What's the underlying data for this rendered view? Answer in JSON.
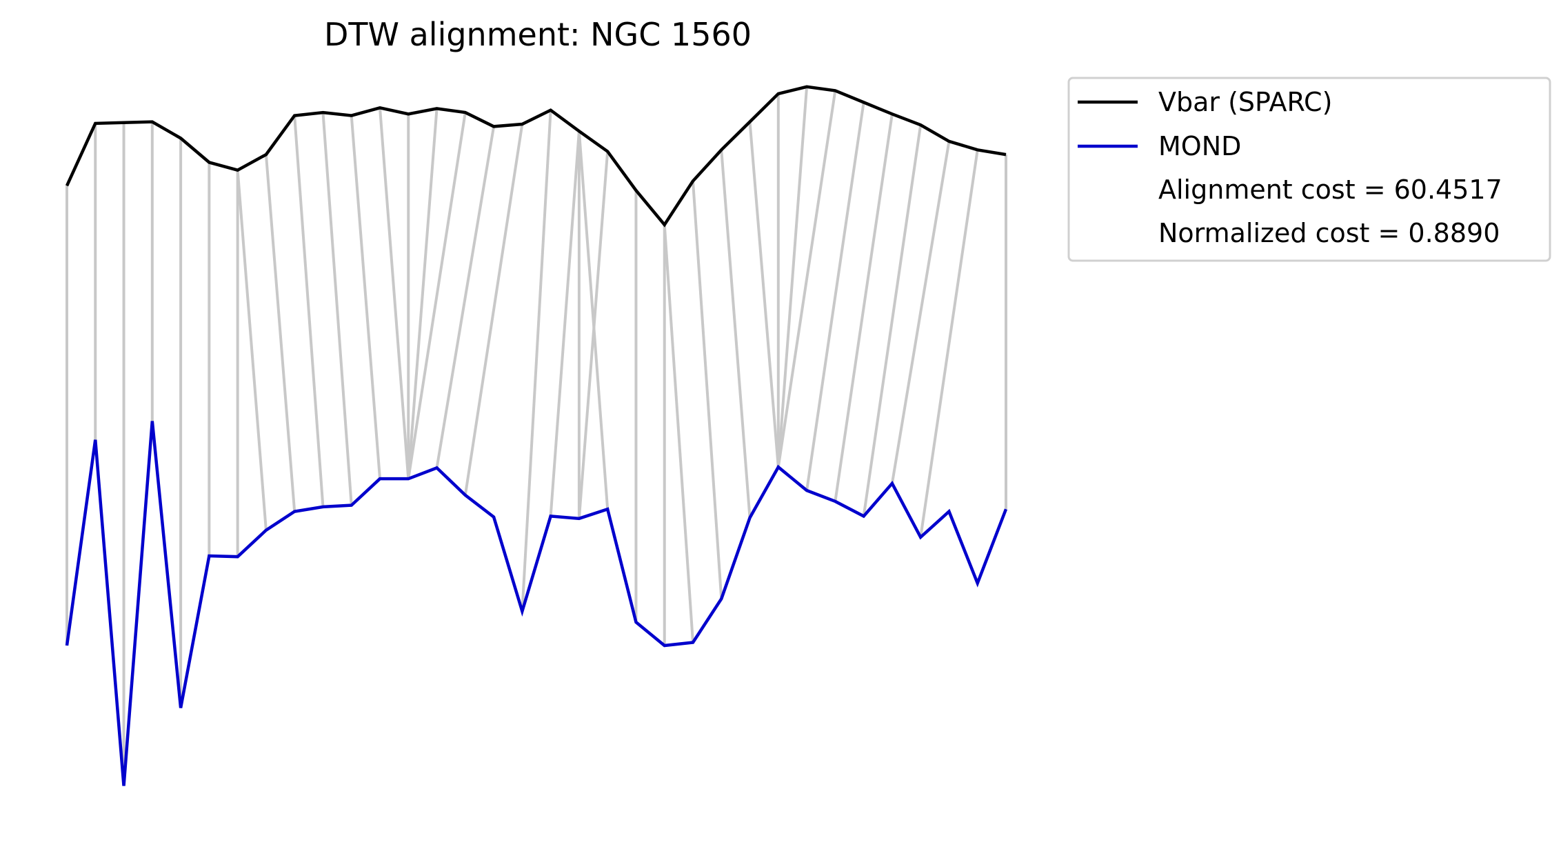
{
  "chart_data": {
    "type": "line",
    "title": "DTW alignment: NGC 1560",
    "axes_visible": false,
    "grid": false,
    "legend_position": "outside-right-top",
    "x": [
      0,
      1,
      2,
      3,
      4,
      5,
      6,
      7,
      8,
      9,
      10,
      11,
      12,
      13,
      14,
      15,
      16,
      17,
      18,
      19,
      20,
      21,
      22,
      23,
      24,
      25,
      26,
      27,
      28,
      29,
      30,
      31,
      32,
      33
    ],
    "series": [
      {
        "name": "Vbar (SPARC)",
        "color": "#000000",
        "values": [
          0.79,
          0.87,
          0.871,
          0.872,
          0.851,
          0.82,
          0.81,
          0.83,
          0.88,
          0.884,
          0.88,
          0.89,
          0.882,
          0.889,
          0.884,
          0.866,
          0.869,
          0.887,
          0.86,
          0.834,
          0.784,
          0.74,
          0.796,
          0.836,
          0.872,
          0.908,
          0.917,
          0.912,
          0.897,
          0.882,
          0.868,
          0.847,
          0.836,
          0.83
        ]
      },
      {
        "name": "MOND",
        "color": "#0000cc",
        "values": [
          0.2,
          0.464,
          0.02,
          0.488,
          0.12,
          0.315,
          0.314,
          0.348,
          0.372,
          0.378,
          0.38,
          0.414,
          0.414,
          0.428,
          0.393,
          0.365,
          0.244,
          0.366,
          0.363,
          0.375,
          0.23,
          0.2,
          0.204,
          0.26,
          0.364,
          0.429,
          0.399,
          0.385,
          0.366,
          0.408,
          0.339,
          0.372,
          0.28,
          0.375
        ]
      }
    ],
    "alignment_pairs": [
      [
        0,
        0
      ],
      [
        1,
        1
      ],
      [
        2,
        2
      ],
      [
        3,
        3
      ],
      [
        4,
        4
      ],
      [
        5,
        5
      ],
      [
        6,
        6
      ],
      [
        6,
        7
      ],
      [
        7,
        8
      ],
      [
        8,
        9
      ],
      [
        9,
        10
      ],
      [
        10,
        11
      ],
      [
        11,
        12
      ],
      [
        12,
        12
      ],
      [
        13,
        12
      ],
      [
        14,
        12
      ],
      [
        15,
        13
      ],
      [
        16,
        14
      ],
      [
        17,
        16
      ],
      [
        18,
        17
      ],
      [
        18,
        18
      ],
      [
        18,
        19
      ],
      [
        19,
        18
      ],
      [
        20,
        20
      ],
      [
        21,
        21
      ],
      [
        21,
        22
      ],
      [
        22,
        23
      ],
      [
        23,
        24
      ],
      [
        24,
        25
      ],
      [
        25,
        25
      ],
      [
        26,
        25
      ],
      [
        27,
        25
      ],
      [
        28,
        26
      ],
      [
        29,
        27
      ],
      [
        30,
        28
      ],
      [
        31,
        29
      ],
      [
        32,
        30
      ],
      [
        33,
        33
      ]
    ],
    "alignment_line_color": "#c8c8c8",
    "annotations": [
      "Alignment cost = 60.4517",
      "Normalized cost = 0.8890"
    ]
  }
}
